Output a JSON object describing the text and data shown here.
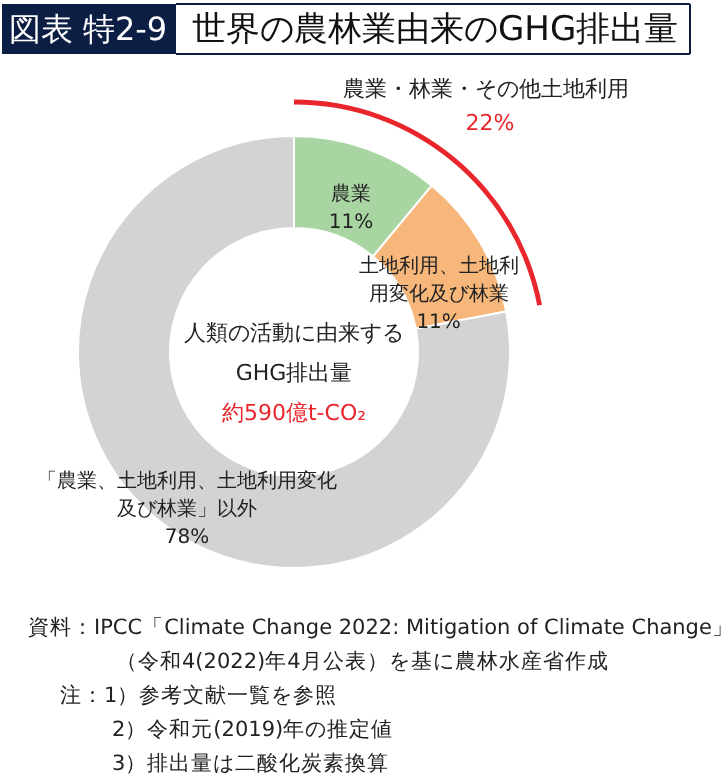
{
  "chart_data": {
    "type": "donut",
    "title": "世界の農林業由来のGHG排出量",
    "categories": [
      "農業",
      "土地利用、土地利用変化及び林業",
      "「農業、土地利用、土地利用変化及び林業」以外"
    ],
    "values": [
      11,
      11,
      78
    ],
    "value_labels": [
      "11%",
      "11%",
      "78%"
    ],
    "colors": [
      "#a8d5a2",
      "#f7b77a",
      "#d3d3d3"
    ],
    "annotations": [
      "図表 特2-9",
      "農業・林業・その他土地利用",
      "22%",
      "人類の活動に由来する",
      "GHG排出量",
      "約590億t-CO₂",
      "資料：IPCC「Climate Change 2022: Mitigation of Climate Change」",
      "（令和4(2022)年4月公表）を基に農林水産省作成",
      "注：1）参考文献一覧を参照",
      "2）令和元(2019)年の推定値",
      "3）排出量は二酸化炭素換算"
    ]
  }
}
